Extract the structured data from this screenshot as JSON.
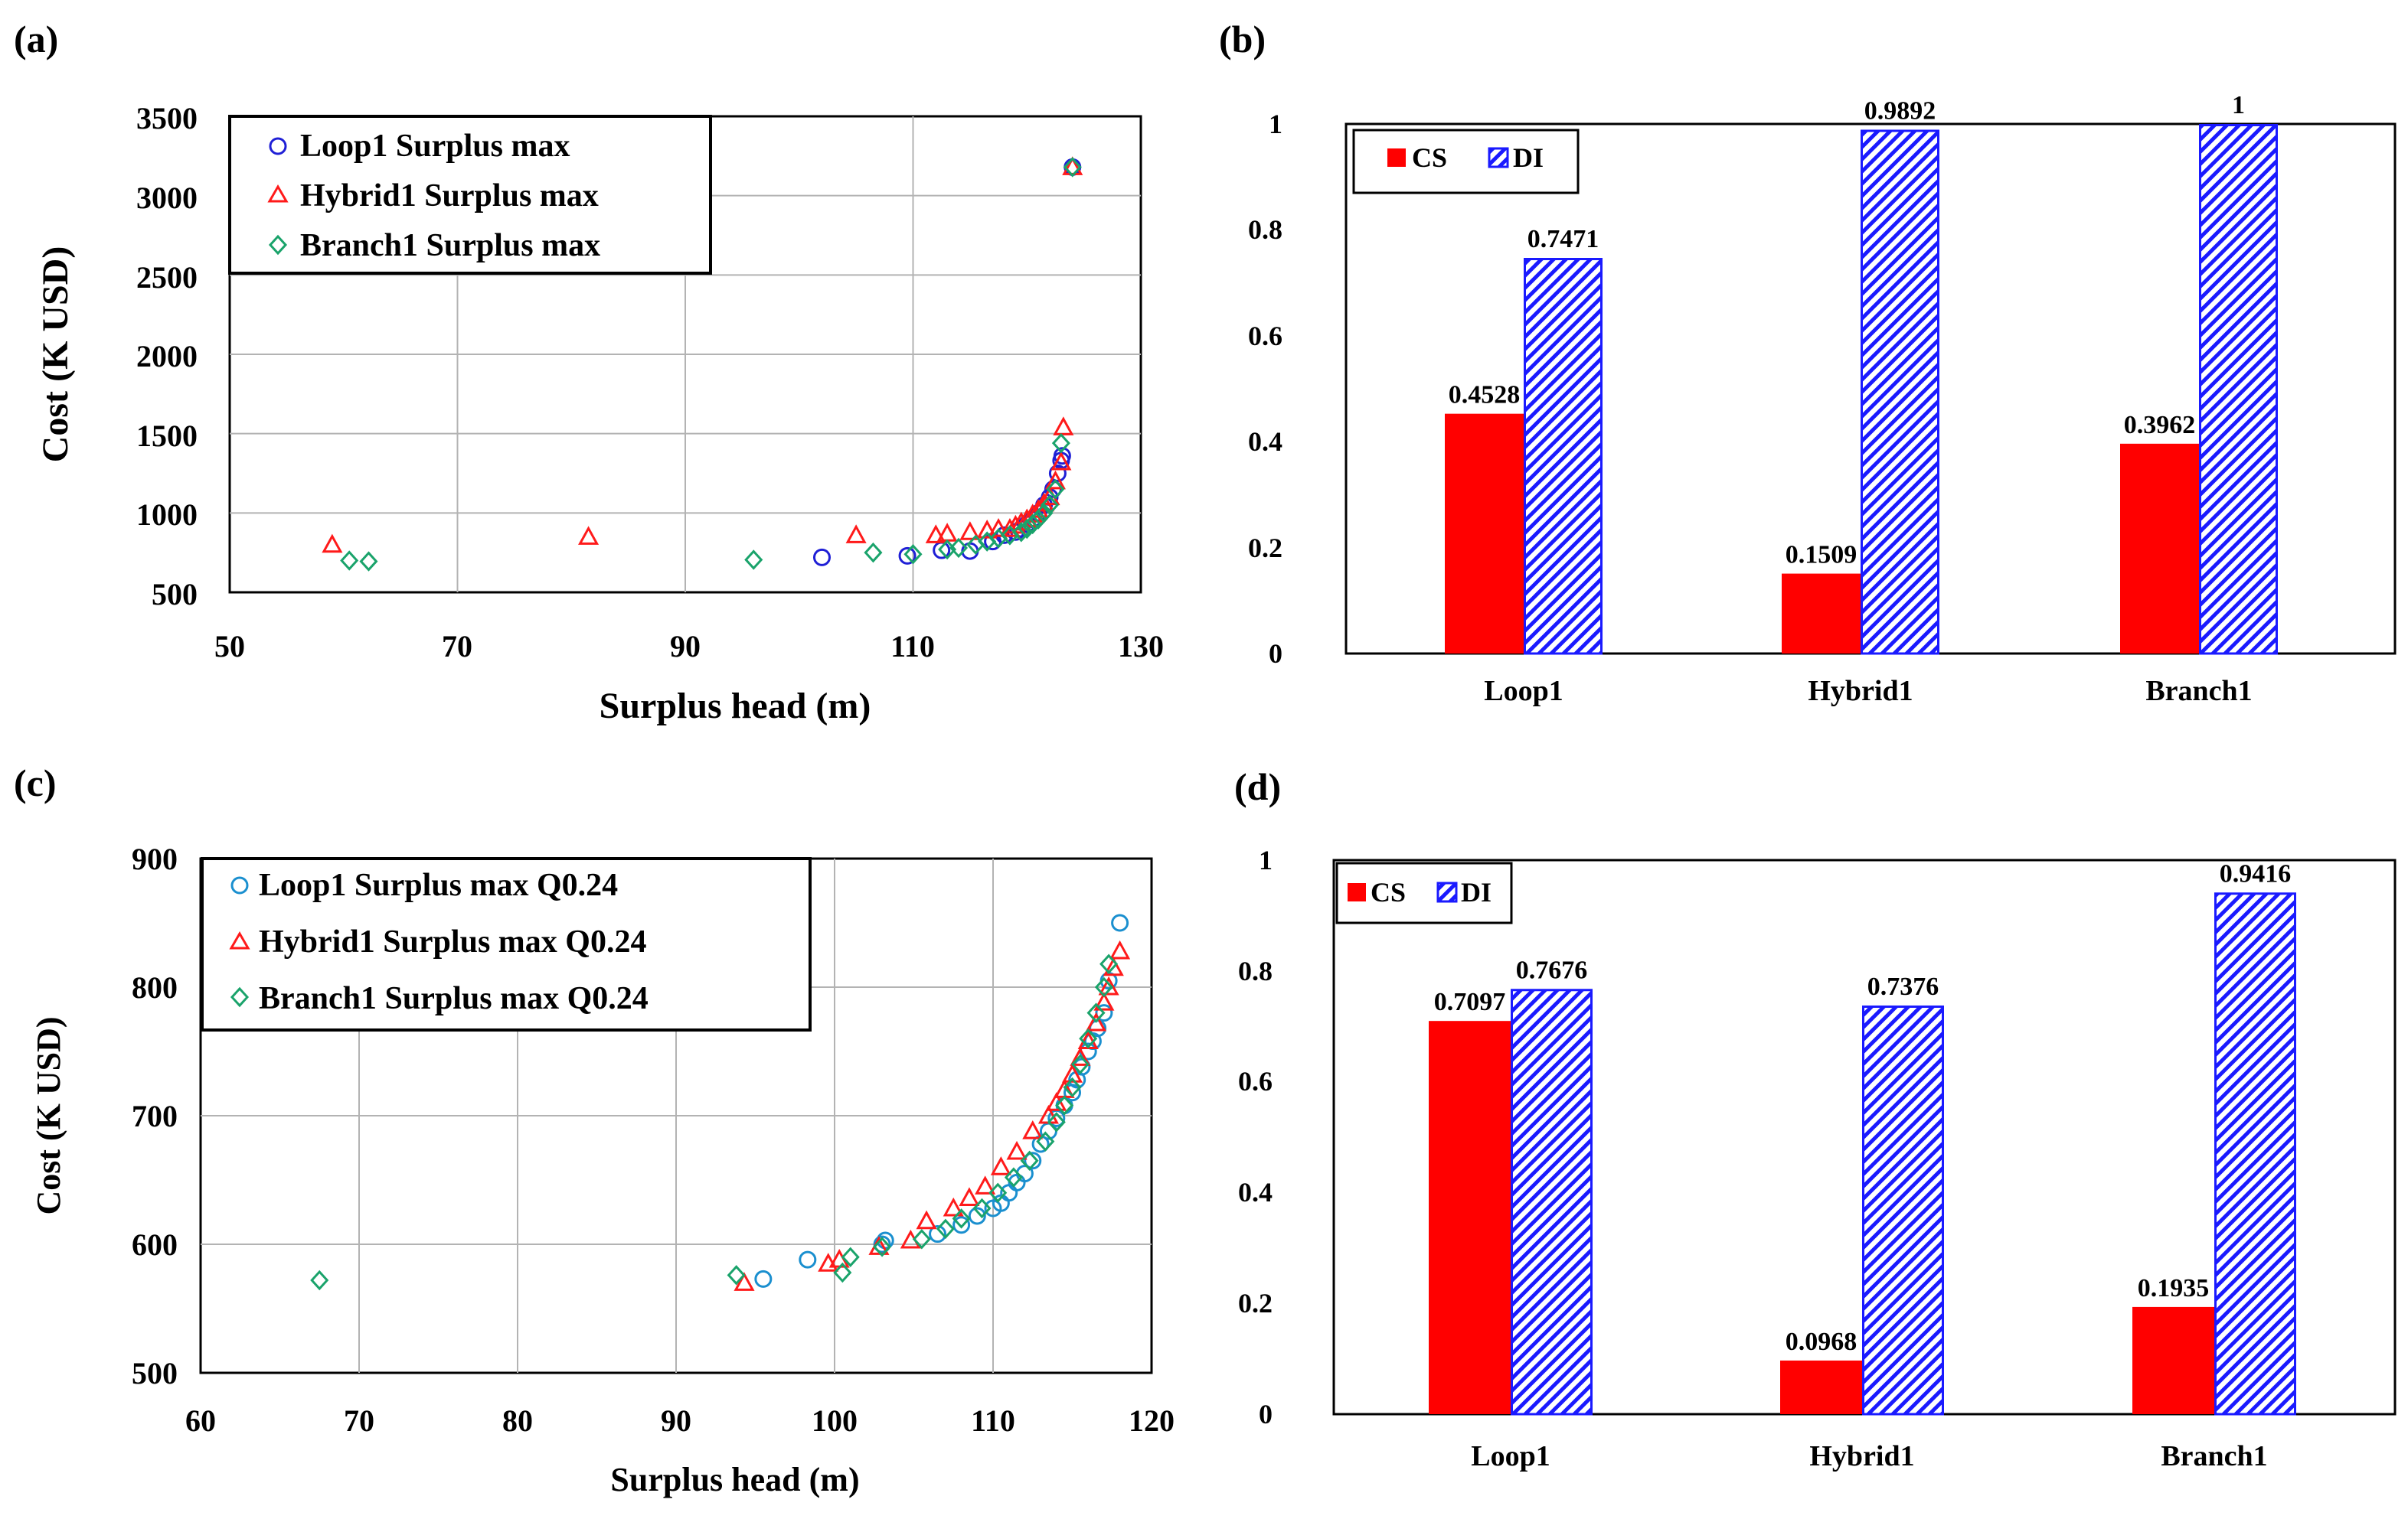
{
  "colors": {
    "loop": "#1f1fd6",
    "loop_c": "#1a8fcf",
    "hybrid": "#ff1a1a",
    "branch": "#1aa36b",
    "cs": "#ff0000",
    "di": "#1a1aff",
    "grid": "#b3b3b3"
  },
  "chart_data": [
    {
      "id": "a",
      "panel_label": "(a)",
      "type": "scatter",
      "xlabel": "Surplus  head (m)",
      "ylabel": "Cost (K USD)",
      "xlim": [
        50,
        130
      ],
      "ylim": [
        500,
        3500
      ],
      "xticks": [
        50,
        70,
        90,
        110,
        130
      ],
      "yticks": [
        500,
        1000,
        1500,
        2000,
        2500,
        3000,
        3500
      ],
      "x_tick_labels": [
        "50",
        "70",
        "90",
        "110",
        "130"
      ],
      "y_tick_labels": [
        "500",
        "1000",
        "1500",
        "2000",
        "2500",
        "3000",
        "3500"
      ],
      "grid": true,
      "legend_position": "top-left",
      "series": [
        {
          "name": "Loop1 Surplus max",
          "marker": "circle",
          "color_key": "loop",
          "x": [
            102,
            109.5,
            112.5,
            115,
            117,
            118,
            119,
            119.5,
            120,
            120.5,
            121,
            121.5,
            122,
            122.3,
            122.7,
            123,
            123.1,
            124
          ],
          "y": [
            720,
            730,
            765,
            760,
            820,
            860,
            880,
            900,
            930,
            960,
            1000,
            1050,
            1100,
            1150,
            1250,
            1330,
            1360,
            3180
          ]
        },
        {
          "name": "Hybrid1 Surplus max",
          "marker": "triangle",
          "color_key": "hybrid",
          "x": [
            59,
            81.5,
            105,
            112,
            113,
            115,
            116.5,
            117.5,
            118.5,
            119,
            119.5,
            120,
            120.5,
            121,
            121.5,
            122,
            122.5,
            123,
            123.2,
            124
          ],
          "y": [
            800,
            850,
            860,
            860,
            870,
            880,
            890,
            900,
            900,
            920,
            940,
            960,
            990,
            1020,
            1060,
            1100,
            1200,
            1320,
            1540,
            3180
          ]
        },
        {
          "name": "Branch1 Surplus max",
          "marker": "diamond",
          "color_key": "branch",
          "x": [
            60.5,
            62.2,
            96,
            106.5,
            110,
            113,
            114,
            115.5,
            116.5,
            117.5,
            118.5,
            119.5,
            120,
            120.5,
            121,
            121.5,
            122,
            122.5,
            123,
            124
          ],
          "y": [
            700,
            695,
            705,
            750,
            740,
            770,
            780,
            800,
            820,
            840,
            860,
            880,
            900,
            930,
            960,
            1000,
            1050,
            1150,
            1440,
            3180
          ]
        }
      ]
    },
    {
      "id": "b",
      "panel_label": "(b)",
      "type": "bar",
      "categories": [
        "Loop1",
        "Hybrid1",
        "Branch1"
      ],
      "ylim": [
        0,
        1
      ],
      "yticks": [
        0,
        0.2,
        0.4,
        0.6,
        0.8,
        1
      ],
      "y_tick_labels": [
        "0",
        "0.2",
        "0.4",
        "0.6",
        "0.8",
        "1"
      ],
      "grid": false,
      "legend_position": "top-left",
      "series": [
        {
          "name": "CS",
          "fill": "solid",
          "color_key": "cs",
          "values": [
            0.4528,
            0.1509,
            0.3962
          ],
          "labels": [
            "0.4528",
            "0.1509",
            "0.3962"
          ]
        },
        {
          "name": "DI",
          "fill": "hatch",
          "color_key": "di",
          "values": [
            0.7471,
            0.9892,
            1
          ],
          "labels": [
            "0.7471",
            "0.9892",
            "1"
          ]
        }
      ]
    },
    {
      "id": "c",
      "panel_label": "(c)",
      "type": "scatter",
      "xlabel": "Surplus head (m)",
      "ylabel": "Cost (K USD)",
      "xlim": [
        60,
        120
      ],
      "ylim": [
        500,
        900
      ],
      "xticks": [
        60,
        70,
        80,
        90,
        100,
        110,
        120
      ],
      "yticks": [
        500,
        600,
        700,
        800,
        900
      ],
      "x_tick_labels": [
        "60",
        "70",
        "80",
        "90",
        "100",
        "110",
        "120"
      ],
      "y_tick_labels": [
        "500",
        "600",
        "700",
        "800",
        "900"
      ],
      "grid": true,
      "legend_position": "top-left",
      "series": [
        {
          "name": "Loop1 Surplus max Q0.24",
          "marker": "circle",
          "color_key": "loop_c",
          "x": [
            95.5,
            98.3,
            103,
            103.2,
            106.5,
            108,
            109,
            110,
            110.5,
            111,
            111.5,
            112,
            112.5,
            113,
            113.5,
            114,
            114.5,
            115,
            115.3,
            115.6,
            116,
            116.3,
            116.6,
            117,
            117.3,
            118
          ],
          "y": [
            573,
            588,
            600,
            603,
            608,
            615,
            622,
            628,
            632,
            640,
            648,
            655,
            665,
            678,
            688,
            698,
            708,
            718,
            728,
            738,
            750,
            758,
            768,
            780,
            805,
            850
          ]
        },
        {
          "name": "Hybrid1 Surplus max Q0.24",
          "marker": "triangle",
          "color_key": "hybrid",
          "x": [
            94.3,
            99.6,
            100.3,
            102.8,
            104.8,
            105.8,
            107.5,
            108.5,
            109.5,
            110.5,
            111.5,
            112.5,
            113.5,
            114,
            114.5,
            115,
            115.5,
            116,
            116.5,
            117,
            117.3,
            117.6,
            118
          ],
          "y": [
            570,
            585,
            588,
            598,
            603,
            618,
            628,
            636,
            645,
            660,
            672,
            688,
            700,
            710,
            720,
            732,
            745,
            758,
            772,
            788,
            800,
            815,
            828
          ]
        },
        {
          "name": "Branch1 Surplus max Q0.24",
          "marker": "diamond",
          "color_key": "branch",
          "x": [
            67.5,
            93.8,
            100.5,
            101,
            103,
            105.5,
            107,
            108,
            109.3,
            110.3,
            111.3,
            112.3,
            113.3,
            114,
            114.5,
            115,
            115.5,
            116,
            116.5,
            117,
            117.3
          ],
          "y": [
            572,
            576,
            578,
            590,
            598,
            604,
            612,
            620,
            628,
            640,
            652,
            665,
            680,
            695,
            708,
            722,
            740,
            760,
            780,
            800,
            818
          ]
        }
      ]
    },
    {
      "id": "d",
      "panel_label": "(d)",
      "type": "bar",
      "categories": [
        "Loop1",
        "Hybrid1",
        "Branch1"
      ],
      "ylim": [
        0,
        1
      ],
      "yticks": [
        0,
        0.2,
        0.4,
        0.6,
        0.8,
        1
      ],
      "y_tick_labels": [
        "0",
        "0.2",
        "0.4",
        "0.6",
        "0.8",
        "1"
      ],
      "grid": false,
      "legend_position": "top-left",
      "series": [
        {
          "name": "CS",
          "fill": "solid",
          "color_key": "cs",
          "values": [
            0.7097,
            0.0968,
            0.1935
          ],
          "labels": [
            "0.7097",
            "0.0968",
            "0.1935"
          ]
        },
        {
          "name": "DI",
          "fill": "hatch",
          "color_key": "di",
          "values": [
            0.7676,
            0.7376,
            0.9416
          ],
          "labels": [
            "0.7676",
            "0.7376",
            "0.9416"
          ]
        }
      ]
    }
  ]
}
